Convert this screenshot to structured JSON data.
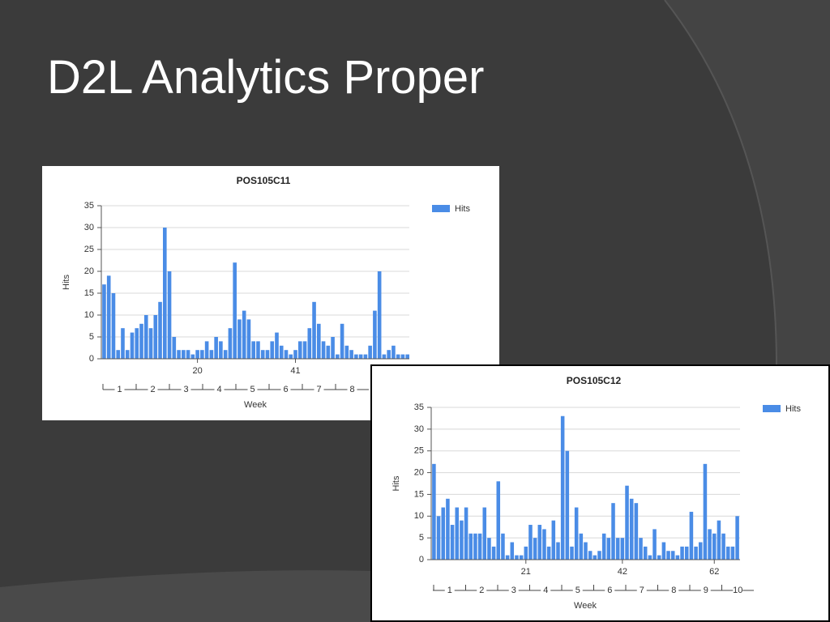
{
  "slide_title": "D2L Analytics Proper",
  "chart_data": [
    {
      "type": "bar",
      "title": "POS105C11",
      "y_label": "Hits",
      "x_label": "Week",
      "x": [
        0,
        1,
        2,
        3,
        4,
        5,
        6,
        7,
        8,
        9,
        10,
        11,
        12,
        13,
        14,
        15,
        16,
        17,
        18,
        19,
        20,
        21,
        22,
        23,
        24,
        25,
        26,
        27,
        28,
        29,
        30,
        31,
        32,
        33,
        34,
        35,
        36,
        37,
        38,
        39,
        40,
        41,
        42,
        43,
        44,
        45,
        46,
        47,
        48,
        49,
        50,
        51,
        52,
        53,
        54,
        55,
        56,
        57,
        58,
        59,
        60,
        61,
        62,
        63,
        64,
        65
      ],
      "series": [
        {
          "name": "Hits",
          "color": "#4a8ce6",
          "values": [
            17,
            19,
            15,
            2,
            7,
            2,
            6,
            7,
            8,
            10,
            7,
            10,
            13,
            30,
            20,
            5,
            2,
            2,
            2,
            1,
            2,
            2,
            4,
            2,
            5,
            4,
            2,
            7,
            22,
            9,
            11,
            9,
            4,
            4,
            2,
            2,
            4,
            6,
            3,
            2,
            1,
            2,
            4,
            4,
            7,
            13,
            8,
            4,
            3,
            5,
            1,
            8,
            3,
            2,
            1,
            1,
            1,
            3,
            11,
            20,
            1,
            2,
            3,
            1,
            1,
            1
          ]
        }
      ],
      "xlim": [
        -0.6,
        65.4
      ],
      "xticks": [
        20,
        41
      ],
      "ylim": [
        0,
        35
      ],
      "yticks": [
        0,
        5,
        10,
        15,
        20,
        25,
        30,
        35
      ],
      "grid": true,
      "legend": "right",
      "week_labels": [
        "1",
        "2",
        "3",
        "4",
        "5",
        "6",
        "7",
        "8"
      ]
    },
    {
      "type": "bar",
      "title": "POS105C12",
      "y_label": "Hits",
      "x_label": "Week",
      "x": [
        1,
        2,
        3,
        4,
        5,
        6,
        7,
        8,
        9,
        10,
        11,
        12,
        13,
        14,
        15,
        16,
        17,
        18,
        19,
        20,
        21,
        22,
        23,
        24,
        25,
        26,
        27,
        28,
        29,
        30,
        31,
        32,
        33,
        34,
        35,
        36,
        37,
        38,
        39,
        40,
        41,
        42,
        43,
        44,
        45,
        46,
        47,
        48,
        49,
        50,
        51,
        52,
        53,
        54,
        55,
        56,
        57,
        58,
        59,
        60,
        61,
        62,
        63,
        64,
        65,
        66,
        67
      ],
      "series": [
        {
          "name": "Hits",
          "color": "#4a8ce6",
          "values": [
            22,
            10,
            12,
            14,
            8,
            12,
            9,
            12,
            6,
            6,
            6,
            12,
            5,
            3,
            18,
            6,
            1,
            4,
            1,
            1,
            3,
            8,
            5,
            8,
            7,
            3,
            9,
            4,
            33,
            25,
            3,
            12,
            6,
            4,
            2,
            1,
            2,
            6,
            5,
            13,
            5,
            5,
            17,
            14,
            13,
            5,
            3,
            1,
            7,
            1,
            4,
            2,
            2,
            1,
            3,
            3,
            11,
            3,
            4,
            22,
            7,
            6,
            9,
            6,
            3,
            3,
            10
          ]
        }
      ],
      "xlim": [
        0.4,
        67.6
      ],
      "xticks": [
        21,
        42,
        62
      ],
      "ylim": [
        0,
        35
      ],
      "yticks": [
        0,
        5,
        10,
        15,
        20,
        25,
        30,
        35
      ],
      "grid": true,
      "legend": "right",
      "week_labels": [
        "1",
        "2",
        "3",
        "4",
        "5",
        "6",
        "7",
        "8",
        "9",
        "10"
      ]
    }
  ]
}
